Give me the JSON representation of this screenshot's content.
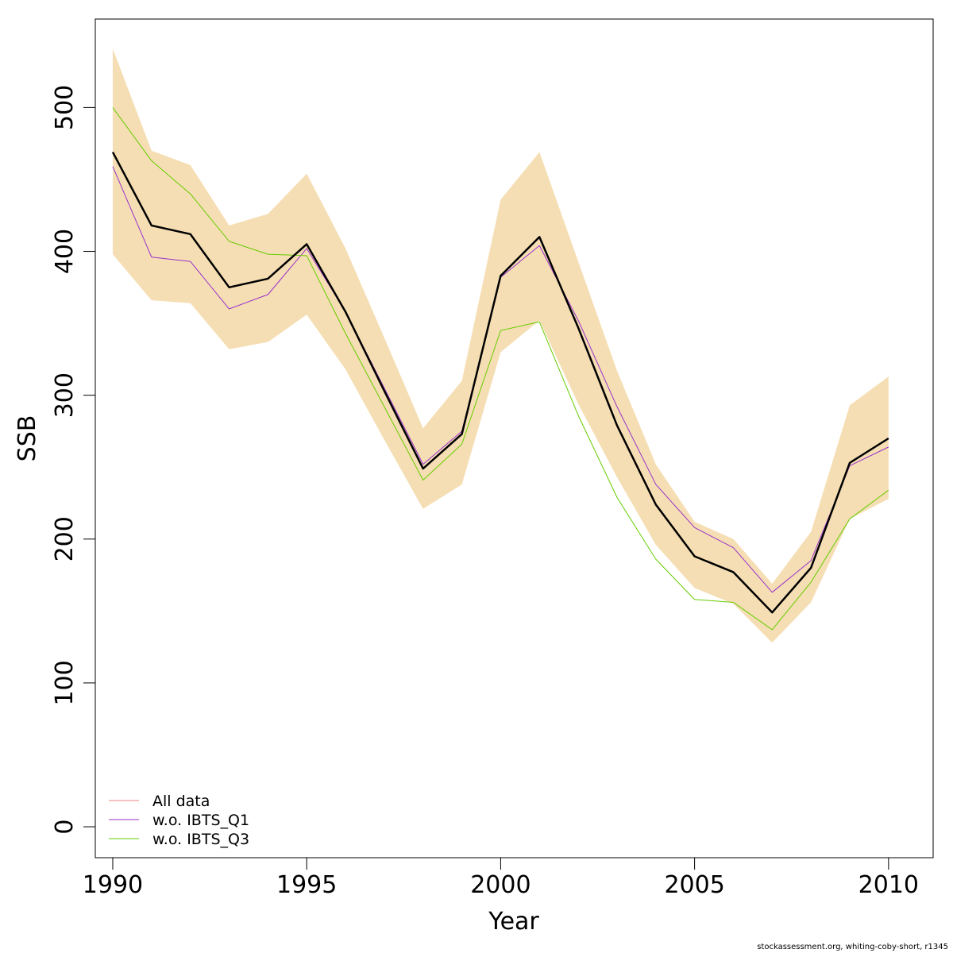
{
  "chart_data": {
    "type": "line",
    "xlabel": "Year",
    "ylabel": "SSB",
    "xlim": [
      1989.55,
      2011.15
    ],
    "ylim": [
      -21.5,
      561.5
    ],
    "xticks": [
      1990,
      1995,
      2000,
      2005,
      2010
    ],
    "yticks": [
      0,
      100,
      200,
      300,
      400,
      500
    ],
    "x": [
      1990,
      1991,
      1992,
      1993,
      1994,
      1995,
      1996,
      1997,
      1998,
      1999,
      2000,
      2001,
      2002,
      2003,
      2004,
      2005,
      2006,
      2007,
      2008,
      2009,
      2010
    ],
    "band": {
      "color": "#F5DEB3",
      "upper": [
        541,
        470,
        460,
        418,
        426,
        454,
        402,
        340,
        277,
        310,
        436,
        469,
        393,
        317,
        252,
        212,
        200,
        169,
        205,
        293,
        313
      ],
      "lower": [
        398,
        366,
        364,
        332,
        337,
        356,
        318,
        269,
        221,
        238,
        330,
        352,
        294,
        243,
        196,
        166,
        155,
        128,
        156,
        214,
        228
      ]
    },
    "series": [
      {
        "name": "All data",
        "color": "#000000",
        "width": 2.5,
        "values": [
          469,
          418,
          412,
          375,
          381,
          405,
          358,
          303,
          249,
          273,
          383,
          410,
          347,
          279,
          224,
          188,
          177,
          149,
          180,
          253,
          270
        ]
      },
      {
        "name": "w.o. IBTS_Q1",
        "color": "#9932CC",
        "width": 1,
        "values": [
          459,
          396,
          393,
          360,
          370,
          402,
          358,
          305,
          252,
          275,
          382,
          404,
          352,
          292,
          238,
          208,
          194,
          163,
          185,
          251,
          264
        ]
      },
      {
        "name": "w.o. IBTS_Q3",
        "color": "#66CC00",
        "width": 1,
        "values": [
          500,
          463,
          440,
          407,
          398,
          397,
          343,
          292,
          241,
          266,
          345,
          351,
          286,
          229,
          186,
          158,
          156,
          137,
          170,
          214,
          234
        ]
      }
    ],
    "legend": {
      "position": "bottom-left",
      "items": [
        {
          "label": "All data",
          "color": "#F08080"
        },
        {
          "label": "w.o. IBTS_Q1",
          "color": "#9932CC"
        },
        {
          "label": "w.o. IBTS_Q3",
          "color": "#66CC00"
        }
      ]
    },
    "grid": false
  },
  "credit": "stockassessment.org, whiting-coby-short, r1345"
}
